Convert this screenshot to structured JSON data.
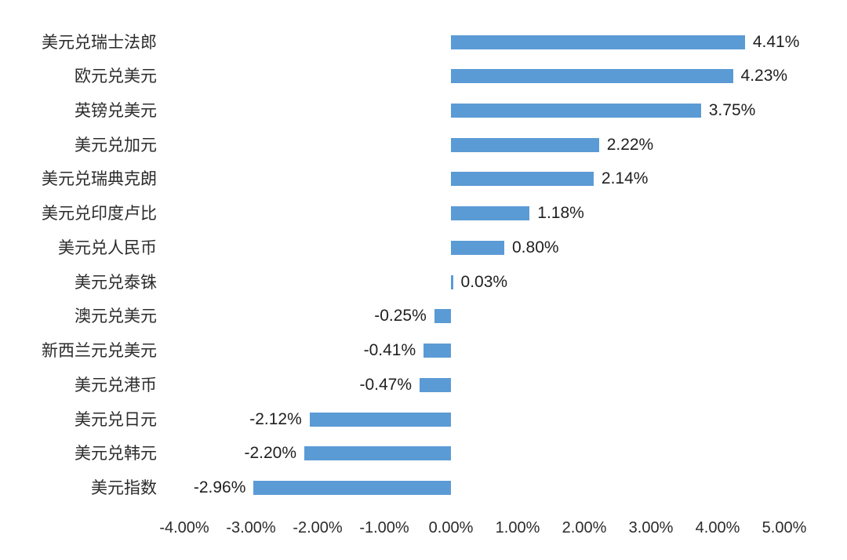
{
  "chart_data": {
    "type": "bar",
    "orientation": "horizontal",
    "title": "",
    "categories": [
      "美元兑瑞士法郎",
      "欧元兑美元",
      "英镑兑美元",
      "美元兑加元",
      "美元兑瑞典克朗",
      "美元兑印度卢比",
      "美元兑人民币",
      "美元兑泰铢",
      "澳元兑美元",
      "新西兰元兑美元",
      "美元兑港币",
      "美元兑日元",
      "美元兑韩元",
      "美元指数"
    ],
    "values": [
      4.41,
      4.23,
      3.75,
      2.22,
      2.14,
      1.18,
      0.8,
      0.03,
      -0.25,
      -0.41,
      -0.47,
      -2.12,
      -2.2,
      -2.96
    ],
    "data_labels": [
      "4.41%",
      "4.23%",
      "3.75%",
      "2.22%",
      "2.14%",
      "1.18%",
      "0.80%",
      "0.03%",
      "-0.25%",
      "-0.41%",
      "-0.47%",
      "-2.12%",
      "-2.20%",
      "-2.96%"
    ],
    "x_tick_values": [
      -4,
      -3,
      -2,
      -1,
      0,
      1,
      2,
      3,
      4,
      5
    ],
    "x_tick_labels": [
      "-4.00%",
      "-3.00%",
      "-2.00%",
      "-1.00%",
      "0.00%",
      "1.00%",
      "2.00%",
      "3.00%",
      "4.00%",
      "5.00%"
    ],
    "xlim": [
      -4,
      5
    ],
    "grid": false,
    "legend": false,
    "axis_line": false,
    "bar_color": "#5B9BD5",
    "text_color": "#2B2B2B",
    "data_label_color": "#1F1F1F",
    "background_color": "#FFFFFF"
  }
}
